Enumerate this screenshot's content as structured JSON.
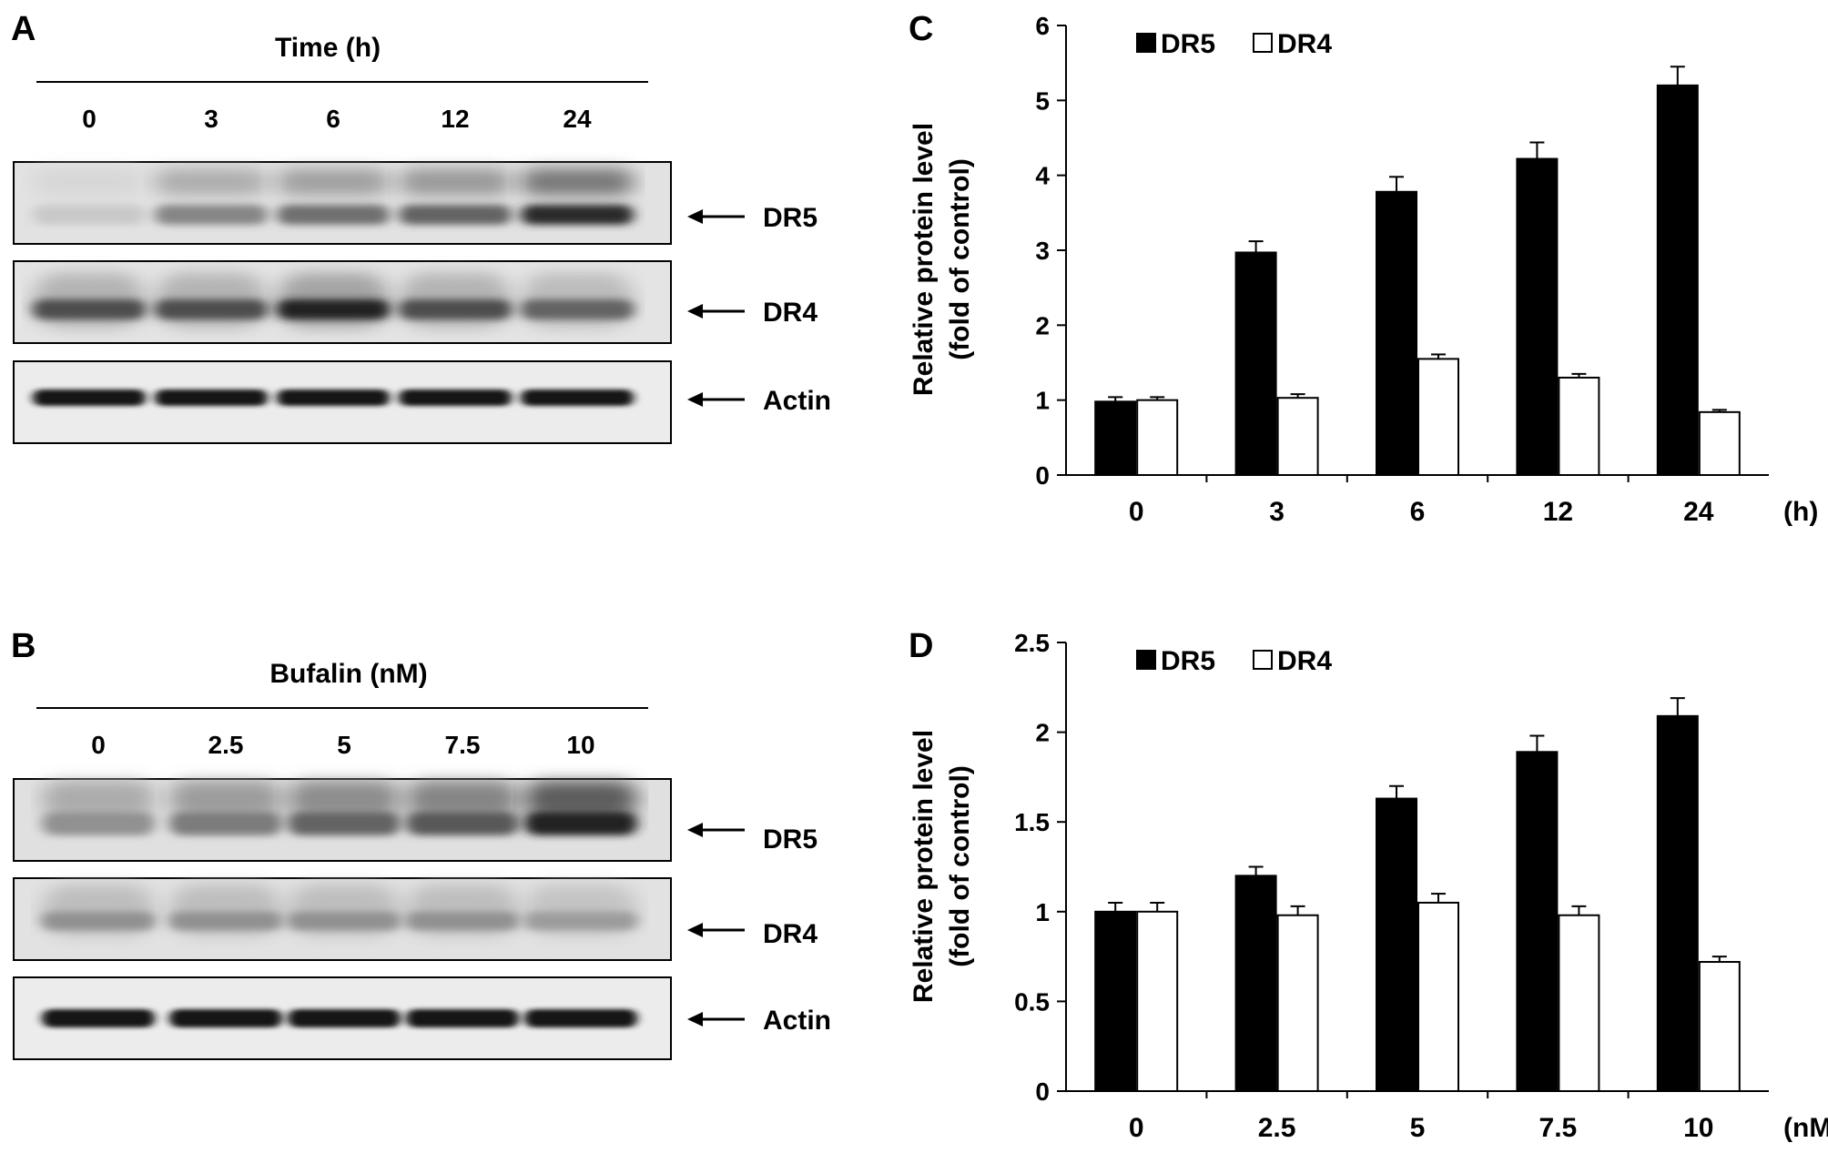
{
  "panels": {
    "A": {
      "letter": "A",
      "header": "Time (h)",
      "lanes": [
        "0",
        "3",
        "6",
        "12",
        "24"
      ],
      "bands": [
        "DR5",
        "DR4",
        "Actin"
      ],
      "dr5_intensity": [
        0.15,
        0.45,
        0.55,
        0.6,
        0.85
      ],
      "dr4_intensity": [
        0.7,
        0.7,
        0.9,
        0.7,
        0.6
      ],
      "actin_intensity": [
        0.95,
        0.95,
        0.95,
        0.95,
        0.95
      ]
    },
    "B": {
      "letter": "B",
      "header": "Bufalin (nM)",
      "lanes": [
        "0",
        "2.5",
        "5",
        "7.5",
        "10"
      ],
      "bands": [
        "DR5",
        "DR4",
        "Actin"
      ],
      "dr5_intensity": [
        0.4,
        0.5,
        0.6,
        0.65,
        0.9
      ],
      "dr4_intensity": [
        0.4,
        0.4,
        0.4,
        0.4,
        0.35
      ],
      "actin_intensity": [
        0.95,
        0.95,
        0.95,
        0.95,
        0.95
      ]
    }
  },
  "chart_data": [
    {
      "panel": "C",
      "type": "bar",
      "categories": [
        "0",
        "3",
        "6",
        "12",
        "24"
      ],
      "xunit": "(h)",
      "ylabel_line1": "Relative protein level",
      "ylabel_line2": "(fold of control)",
      "ylim": [
        0,
        6
      ],
      "yticks": [
        "0",
        "1",
        "2",
        "3",
        "4",
        "5",
        "6"
      ],
      "tick_values": [
        0,
        1,
        2,
        3,
        4,
        5,
        6
      ],
      "legend_position": "top-left",
      "series": [
        {
          "name": "DR5",
          "color": "#000000",
          "values": [
            0.98,
            2.97,
            3.78,
            4.22,
            5.2
          ],
          "errors": [
            0.06,
            0.15,
            0.2,
            0.22,
            0.25
          ]
        },
        {
          "name": "DR4",
          "color": "#ffffff",
          "values": [
            1.0,
            1.03,
            1.55,
            1.3,
            0.84
          ],
          "errors": [
            0.04,
            0.05,
            0.06,
            0.05,
            0.03
          ]
        }
      ]
    },
    {
      "panel": "D",
      "type": "bar",
      "categories": [
        "0",
        "2.5",
        "5",
        "7.5",
        "10"
      ],
      "xunit": "(nM)",
      "ylabel_line1": "Relative protein level",
      "ylabel_line2": "(fold of control)",
      "ylim": [
        0,
        2.5
      ],
      "yticks": [
        "0",
        "0.5",
        "1",
        "1.5",
        "2",
        "2.5"
      ],
      "tick_values": [
        0,
        0.5,
        1,
        1.5,
        2,
        2.5
      ],
      "legend_position": "top-left",
      "series": [
        {
          "name": "DR5",
          "color": "#000000",
          "values": [
            1.0,
            1.2,
            1.63,
            1.89,
            2.09
          ],
          "errors": [
            0.05,
            0.05,
            0.07,
            0.09,
            0.1
          ]
        },
        {
          "name": "DR4",
          "color": "#ffffff",
          "values": [
            1.0,
            0.98,
            1.05,
            0.98,
            0.72
          ],
          "errors": [
            0.05,
            0.05,
            0.05,
            0.05,
            0.03
          ]
        }
      ]
    }
  ]
}
